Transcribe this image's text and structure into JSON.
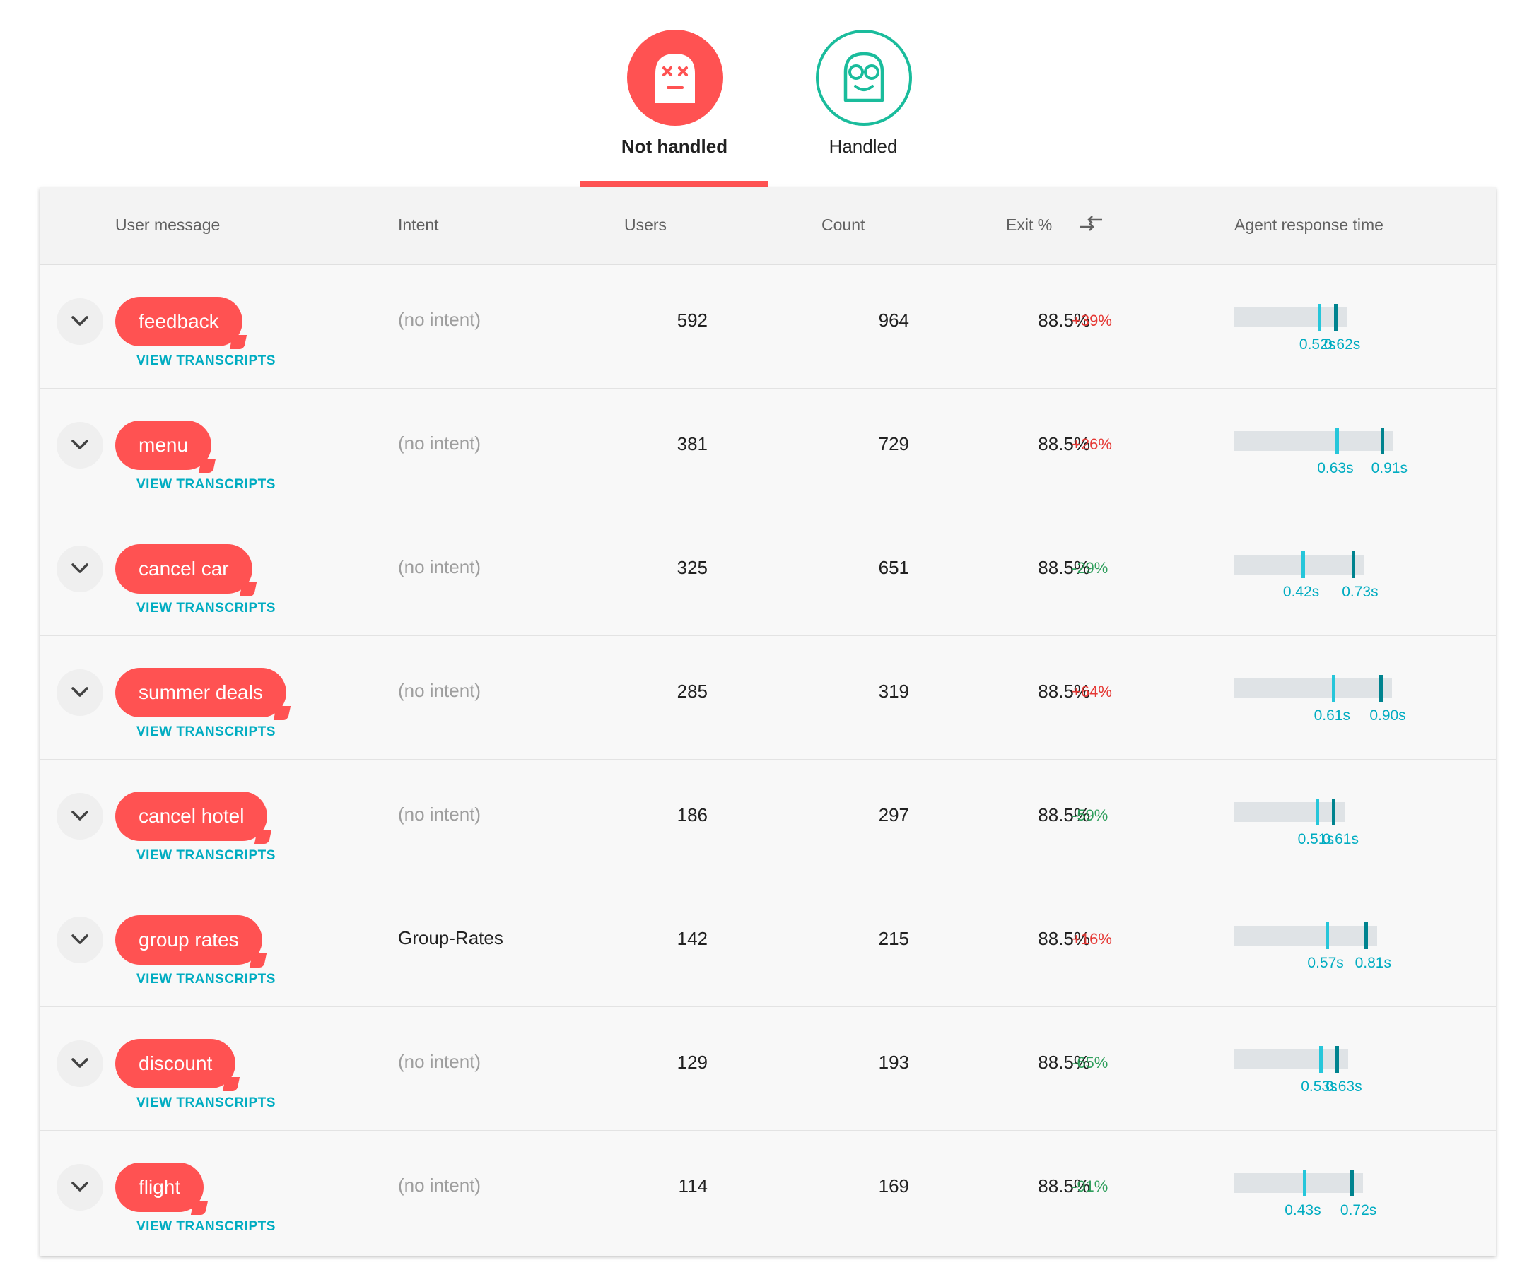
{
  "tabs": {
    "not_handled": {
      "label": "Not handled",
      "icon": "dead-bot-face-icon",
      "color": "#ff5252"
    },
    "handled": {
      "label": "Handled",
      "icon": "happy-bot-glasses-icon",
      "color": "#1abc9c"
    },
    "active": "not_handled"
  },
  "table": {
    "headers": {
      "user_message": "User message",
      "intent": "Intent",
      "users": "Users",
      "count": "Count",
      "exit": "Exit %",
      "sort_icon": "compare-arrows-icon",
      "response_time": "Agent response time"
    },
    "view_transcripts_label": "VIEW TRANSCRIPTS",
    "rows": [
      {
        "message": "feedback",
        "intent": "(no intent)",
        "users": "592",
        "count": "964",
        "exit": "88.5%",
        "delta": "+39%",
        "rt1": "0.52s",
        "rt2": "0.62s",
        "rt1_value": 0.52,
        "rt2_value": 0.62
      },
      {
        "message": "menu",
        "intent": "(no intent)",
        "users": "381",
        "count": "729",
        "exit": "88.5%",
        "delta": "+26%",
        "rt1": "0.63s",
        "rt2": "0.91s",
        "rt1_value": 0.63,
        "rt2_value": 0.91
      },
      {
        "message": "cancel car",
        "intent": "(no intent)",
        "users": "325",
        "count": "651",
        "exit": "88.5%",
        "delta": "-29%",
        "rt1": "0.42s",
        "rt2": "0.73s",
        "rt1_value": 0.42,
        "rt2_value": 0.73
      },
      {
        "message": "summer deals",
        "intent": "(no intent)",
        "users": "285",
        "count": "319",
        "exit": "88.5%",
        "delta": "+64%",
        "rt1": "0.61s",
        "rt2": "0.90s",
        "rt1_value": 0.61,
        "rt2_value": 0.9
      },
      {
        "message": "cancel hotel",
        "intent": "(no intent)",
        "users": "186",
        "count": "297",
        "exit": "88.5%",
        "delta": "-59%",
        "rt1": "0.51s",
        "rt2": "0.61s",
        "rt1_value": 0.51,
        "rt2_value": 0.61
      },
      {
        "message": "group rates",
        "intent": "Group-Rates",
        "users": "142",
        "count": "215",
        "exit": "88.5%",
        "delta": "+16%",
        "rt1": "0.57s",
        "rt2": "0.81s",
        "rt1_value": 0.57,
        "rt2_value": 0.81
      },
      {
        "message": "discount",
        "intent": "(no intent)",
        "users": "129",
        "count": "193",
        "exit": "88.5%",
        "delta": "-65%",
        "rt1": "0.53s",
        "rt2": "0.63s",
        "rt1_value": 0.53,
        "rt2_value": 0.63
      },
      {
        "message": "flight",
        "intent": "(no intent)",
        "users": "114",
        "count": "169",
        "exit": "88.5%",
        "delta": "-91%",
        "rt1": "0.43s",
        "rt2": "0.72s",
        "rt1_value": 0.43,
        "rt2_value": 0.72
      }
    ]
  }
}
